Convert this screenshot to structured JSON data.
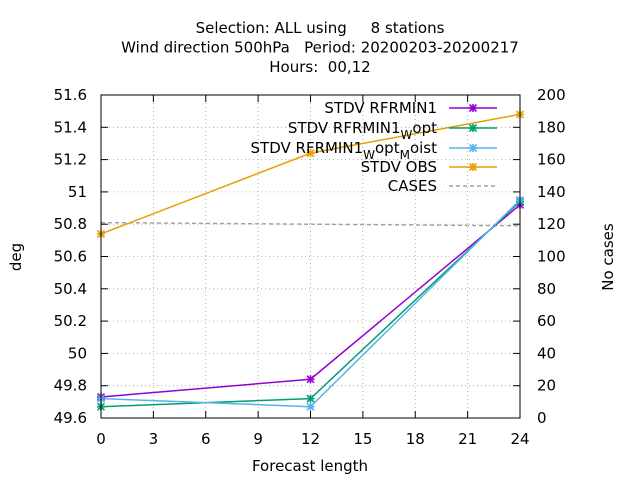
{
  "chart_data": {
    "type": "line",
    "title_lines": [
      "Selection: ALL using     8 stations",
      "Wind direction 500hPa   Period: 20200203-20200217",
      "Hours:  00,12"
    ],
    "xlabel": "Forecast length",
    "ylabel": "deg",
    "y2label": "No cases",
    "x": [
      0,
      12,
      24
    ],
    "xticks": [
      0,
      3,
      6,
      9,
      12,
      15,
      18,
      21,
      24
    ],
    "xlim": [
      0,
      24
    ],
    "ylim": [
      49.6,
      51.6
    ],
    "yticks": [
      49.6,
      49.8,
      50,
      50.2,
      50.4,
      50.6,
      50.8,
      51,
      51.2,
      51.4,
      51.6
    ],
    "ytick_labels": [
      "49.6",
      "49.8",
      "50",
      "50.2",
      "50.4",
      "50.6",
      "50.8",
      "51",
      "51.2",
      "51.4",
      "51.6"
    ],
    "y2lim": [
      0,
      200
    ],
    "y2ticks": [
      0,
      20,
      40,
      60,
      80,
      100,
      120,
      140,
      160,
      180,
      200
    ],
    "grid": true,
    "legend_position": "top-right",
    "series": [
      {
        "legend": "STDV RFRMIN1",
        "color": "#9400d3",
        "axis": "y",
        "values": [
          49.73,
          49.84,
          50.92
        ]
      },
      {
        "legend_parts": [
          "STDV RFRMIN1",
          "W",
          "opt"
        ],
        "color": "#009e73",
        "axis": "y",
        "values": [
          49.67,
          49.72,
          50.94
        ]
      },
      {
        "legend_parts": [
          "STDV RFRMIN1",
          "W",
          "opt",
          "M",
          "oist"
        ],
        "color": "#56b4e9",
        "axis": "y",
        "values": [
          49.72,
          49.67,
          50.95
        ]
      },
      {
        "legend": "STDV OBS",
        "color": "#e69f00",
        "axis": "y",
        "values": [
          50.74,
          51.24,
          51.48
        ]
      },
      {
        "legend": "CASES",
        "color": "#a0a0a0",
        "axis": "y2",
        "dashed": true,
        "values": [
          121,
          120,
          119
        ]
      }
    ]
  }
}
